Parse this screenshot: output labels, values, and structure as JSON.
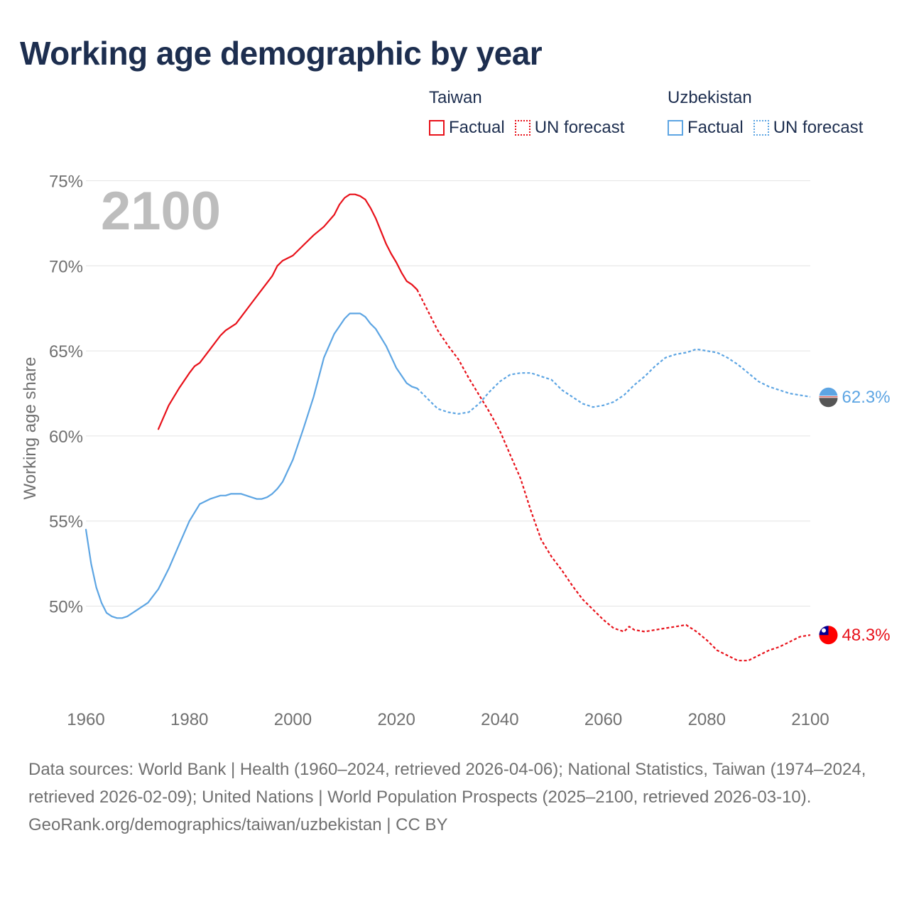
{
  "title": "Working age demographic by year",
  "legend": {
    "groups": [
      {
        "country": "Taiwan",
        "color": "#e8111a",
        "factual_label": "Factual",
        "forecast_label": "UN forecast"
      },
      {
        "country": "Uzbekistan",
        "color": "#5da5e3",
        "factual_label": "Factual",
        "forecast_label": "UN forecast"
      }
    ]
  },
  "footer": {
    "sources": "Data sources: World Bank | Health (1960–2024, retrieved 2026-04-06); National Statistics, Taiwan (1974–2024, retrieved 2026-02-09); United Nations | World Population Prospects (2025–2100, retrieved 2026-03-10).",
    "credit": "GeoRank.org/demographics/taiwan/uzbekistan | CC BY"
  },
  "chart_data": {
    "type": "line",
    "title": "Working age demographic by year",
    "year_label": "2100",
    "xlabel": "",
    "ylabel": "Working age share",
    "xlim": [
      1960,
      2103
    ],
    "ylim": [
      44.5,
      76
    ],
    "x_ticks": [
      1960,
      1980,
      2000,
      2020,
      2040,
      2060,
      2080,
      2100
    ],
    "y_ticks": [
      50,
      55,
      60,
      65,
      70,
      75
    ],
    "y_tick_labels": [
      "50%",
      "55%",
      "60%",
      "65%",
      "70%",
      "75%"
    ],
    "grid": true,
    "series": [
      {
        "name": "Taiwan",
        "color": "#e8111a",
        "end_label": "48.3%",
        "end_value": 48.3,
        "end_x": 2103.5,
        "factual": {
          "x": [
            1974,
            1976,
            1978,
            1980,
            1981,
            1982,
            1984,
            1986,
            1987,
            1989,
            1990,
            1992,
            1994,
            1996,
            1997,
            1998,
            2000,
            2002,
            2004,
            2006,
            2008,
            2009,
            2010,
            2011,
            2012,
            2013,
            2014,
            2015,
            2016,
            2018,
            2019,
            2020,
            2021,
            2022,
            2023,
            2024
          ],
          "y": [
            60.4,
            61.8,
            62.8,
            63.7,
            64.1,
            64.3,
            65.1,
            65.9,
            66.2,
            66.6,
            67.0,
            67.8,
            68.6,
            69.4,
            70.0,
            70.3,
            70.6,
            71.2,
            71.8,
            72.3,
            73.0,
            73.6,
            74.0,
            74.2,
            74.2,
            74.1,
            73.9,
            73.4,
            72.8,
            71.3,
            70.7,
            70.2,
            69.6,
            69.1,
            68.9,
            68.6
          ]
        },
        "forecast": {
          "x": [
            2024,
            2026,
            2028,
            2030,
            2032,
            2034,
            2036,
            2038,
            2040,
            2042,
            2044,
            2046,
            2048,
            2050,
            2052,
            2054,
            2056,
            2058,
            2060,
            2062,
            2064,
            2065,
            2066,
            2068,
            2070,
            2072,
            2074,
            2076,
            2078,
            2080,
            2082,
            2084,
            2086,
            2088,
            2090,
            2092,
            2094,
            2096,
            2098,
            2100
          ],
          "y": [
            68.6,
            67.4,
            66.2,
            65.3,
            64.5,
            63.4,
            62.4,
            61.4,
            60.3,
            58.9,
            57.5,
            55.6,
            53.9,
            52.9,
            52.1,
            51.2,
            50.4,
            49.8,
            49.2,
            48.7,
            48.5,
            48.8,
            48.6,
            48.5,
            48.6,
            48.7,
            48.8,
            48.9,
            48.5,
            48.0,
            47.4,
            47.1,
            46.8,
            46.8,
            47.1,
            47.4,
            47.6,
            47.9,
            48.2,
            48.3
          ]
        }
      },
      {
        "name": "Uzbekistan",
        "color": "#5da5e3",
        "end_label": "62.3%",
        "end_value": 62.3,
        "end_x": 2103.5,
        "factual": {
          "x": [
            1960,
            1961,
            1962,
            1963,
            1964,
            1965,
            1966,
            1967,
            1968,
            1970,
            1972,
            1974,
            1975,
            1976,
            1978,
            1980,
            1982,
            1984,
            1986,
            1987,
            1988,
            1990,
            1992,
            1993,
            1994,
            1995,
            1996,
            1997,
            1998,
            2000,
            2002,
            2004,
            2006,
            2008,
            2010,
            2011,
            2012,
            2013,
            2014,
            2015,
            2016,
            2018,
            2020,
            2022,
            2023,
            2024
          ],
          "y": [
            54.5,
            52.5,
            51.1,
            50.2,
            49.6,
            49.4,
            49.3,
            49.3,
            49.4,
            49.8,
            50.2,
            51.0,
            51.6,
            52.2,
            53.6,
            55.0,
            56.0,
            56.3,
            56.5,
            56.5,
            56.6,
            56.6,
            56.4,
            56.3,
            56.3,
            56.4,
            56.6,
            56.9,
            57.3,
            58.6,
            60.4,
            62.3,
            64.6,
            66.0,
            66.9,
            67.2,
            67.2,
            67.2,
            67.0,
            66.6,
            66.3,
            65.3,
            64.0,
            63.1,
            62.9,
            62.8
          ]
        },
        "forecast": {
          "x": [
            2024,
            2026,
            2028,
            2030,
            2032,
            2034,
            2036,
            2038,
            2040,
            2042,
            2044,
            2046,
            2048,
            2050,
            2052,
            2054,
            2056,
            2058,
            2060,
            2062,
            2064,
            2066,
            2068,
            2070,
            2072,
            2074,
            2076,
            2078,
            2080,
            2082,
            2084,
            2086,
            2088,
            2090,
            2092,
            2094,
            2096,
            2098,
            2100
          ],
          "y": [
            62.8,
            62.2,
            61.6,
            61.4,
            61.3,
            61.4,
            61.9,
            62.6,
            63.2,
            63.6,
            63.7,
            63.7,
            63.5,
            63.3,
            62.7,
            62.3,
            61.9,
            61.7,
            61.8,
            62.0,
            62.4,
            63.0,
            63.5,
            64.1,
            64.6,
            64.8,
            64.9,
            65.1,
            65.0,
            64.9,
            64.6,
            64.2,
            63.7,
            63.2,
            62.9,
            62.7,
            62.5,
            62.4,
            62.3
          ]
        }
      }
    ]
  }
}
